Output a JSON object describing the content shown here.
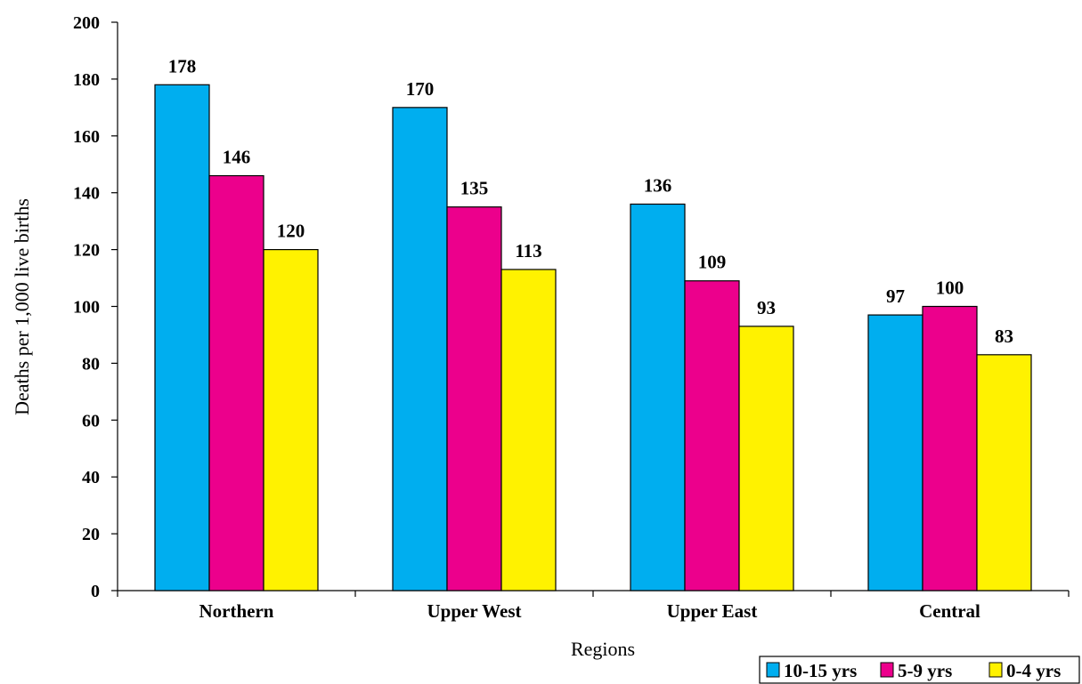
{
  "chart_data": {
    "type": "bar",
    "title": "",
    "xlabel": "Regions",
    "ylabel": "Deaths per 1,000 live births",
    "ylim": [
      0,
      200
    ],
    "yticks": [
      0,
      20,
      40,
      60,
      80,
      100,
      120,
      140,
      160,
      180,
      200
    ],
    "categories": [
      "Northern",
      "Upper West",
      "Upper East",
      "Central"
    ],
    "series": [
      {
        "name": "10-15 yrs",
        "color": "#00AEEF",
        "values": [
          178,
          170,
          136,
          97
        ]
      },
      {
        "name": "5-9 yrs",
        "color": "#EC008C",
        "values": [
          146,
          135,
          109,
          100
        ]
      },
      {
        "name": "0-4 yrs",
        "color": "#FFF200",
        "values": [
          120,
          113,
          93,
          83
        ]
      }
    ],
    "grid": false,
    "legend_position": "bottom-right"
  }
}
